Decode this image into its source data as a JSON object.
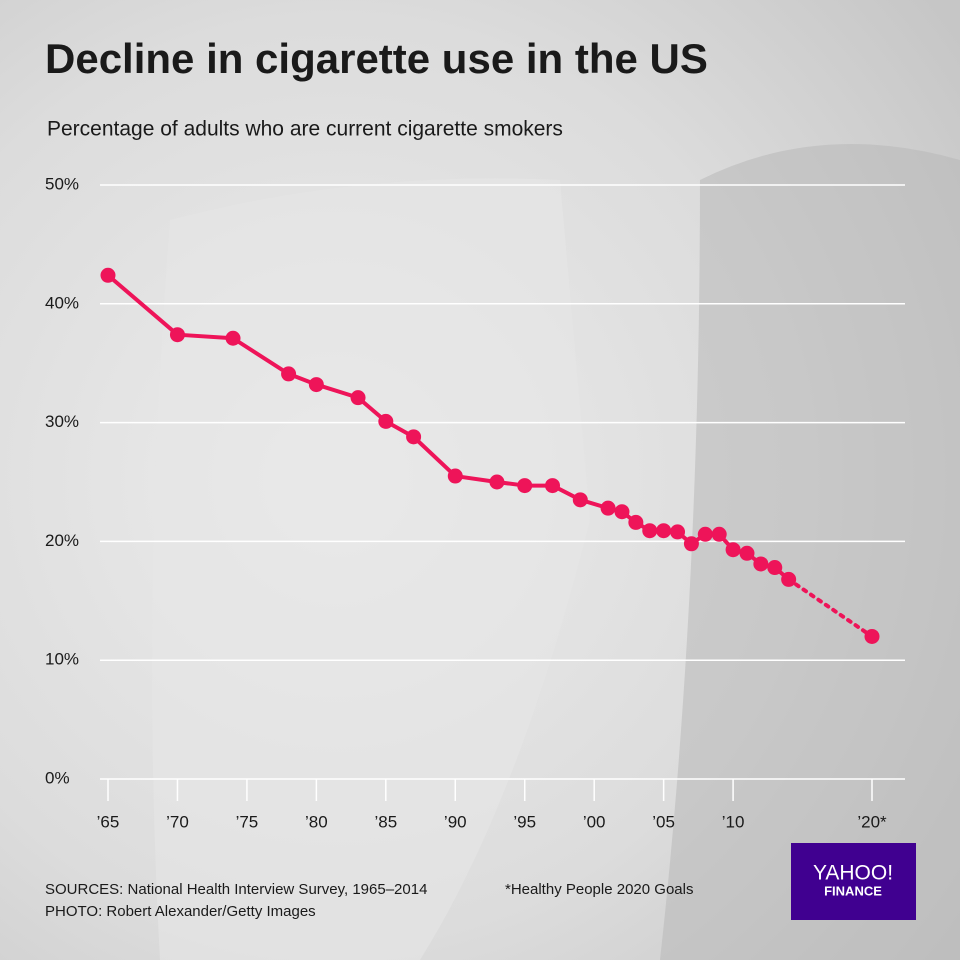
{
  "chart_data": {
    "type": "line",
    "title": "Decline in cigarette use in the US",
    "subtitle": "Percentage of adults who are current cigarette smokers",
    "x": [
      1965,
      1970,
      1974,
      1978,
      1980,
      1983,
      1985,
      1987,
      1990,
      1993,
      1995,
      1997,
      1999,
      2001,
      2002,
      2003,
      2004,
      2005,
      2006,
      2007,
      2008,
      2009,
      2010,
      2011,
      2012,
      2013,
      2014
    ],
    "values": [
      42.4,
      37.4,
      37.1,
      34.1,
      33.2,
      32.1,
      30.1,
      28.8,
      25.5,
      25.0,
      24.7,
      24.7,
      23.5,
      22.8,
      22.5,
      21.6,
      20.9,
      20.9,
      20.8,
      19.8,
      20.6,
      20.6,
      19.3,
      19.0,
      18.1,
      17.8,
      16.8
    ],
    "projection": {
      "x": 2020,
      "value": 12.0
    },
    "color": "#ee1459",
    "xlim": [
      1965,
      2020
    ],
    "xticks": [
      {
        "value": 1965,
        "label": "’65"
      },
      {
        "value": 1970,
        "label": "’70"
      },
      {
        "value": 1975,
        "label": "’75"
      },
      {
        "value": 1980,
        "label": "’80"
      },
      {
        "value": 1985,
        "label": "’85"
      },
      {
        "value": 1990,
        "label": "’90"
      },
      {
        "value": 1995,
        "label": "’95"
      },
      {
        "value": 2000,
        "label": "’00"
      },
      {
        "value": 2005,
        "label": "’05"
      },
      {
        "value": 2010,
        "label": "’10"
      },
      {
        "value": 2020,
        "label": "’20*"
      }
    ],
    "ylim": [
      0,
      50
    ],
    "yticks": [
      {
        "value": 0,
        "label": "0%"
      },
      {
        "value": 10,
        "label": "10%"
      },
      {
        "value": 20,
        "label": "20%"
      },
      {
        "value": 30,
        "label": "30%"
      },
      {
        "value": 40,
        "label": "40%"
      },
      {
        "value": 50,
        "label": "50%"
      }
    ],
    "grid": true,
    "sources": "SOURCES: National Health Interview Survey, 1965–2014",
    "note": "*Healthy People 2020 Goals",
    "photo": "PHOTO: Robert Alexander/Getty Images",
    "logo": [
      "YAHOO!",
      "FINANCE"
    ]
  }
}
